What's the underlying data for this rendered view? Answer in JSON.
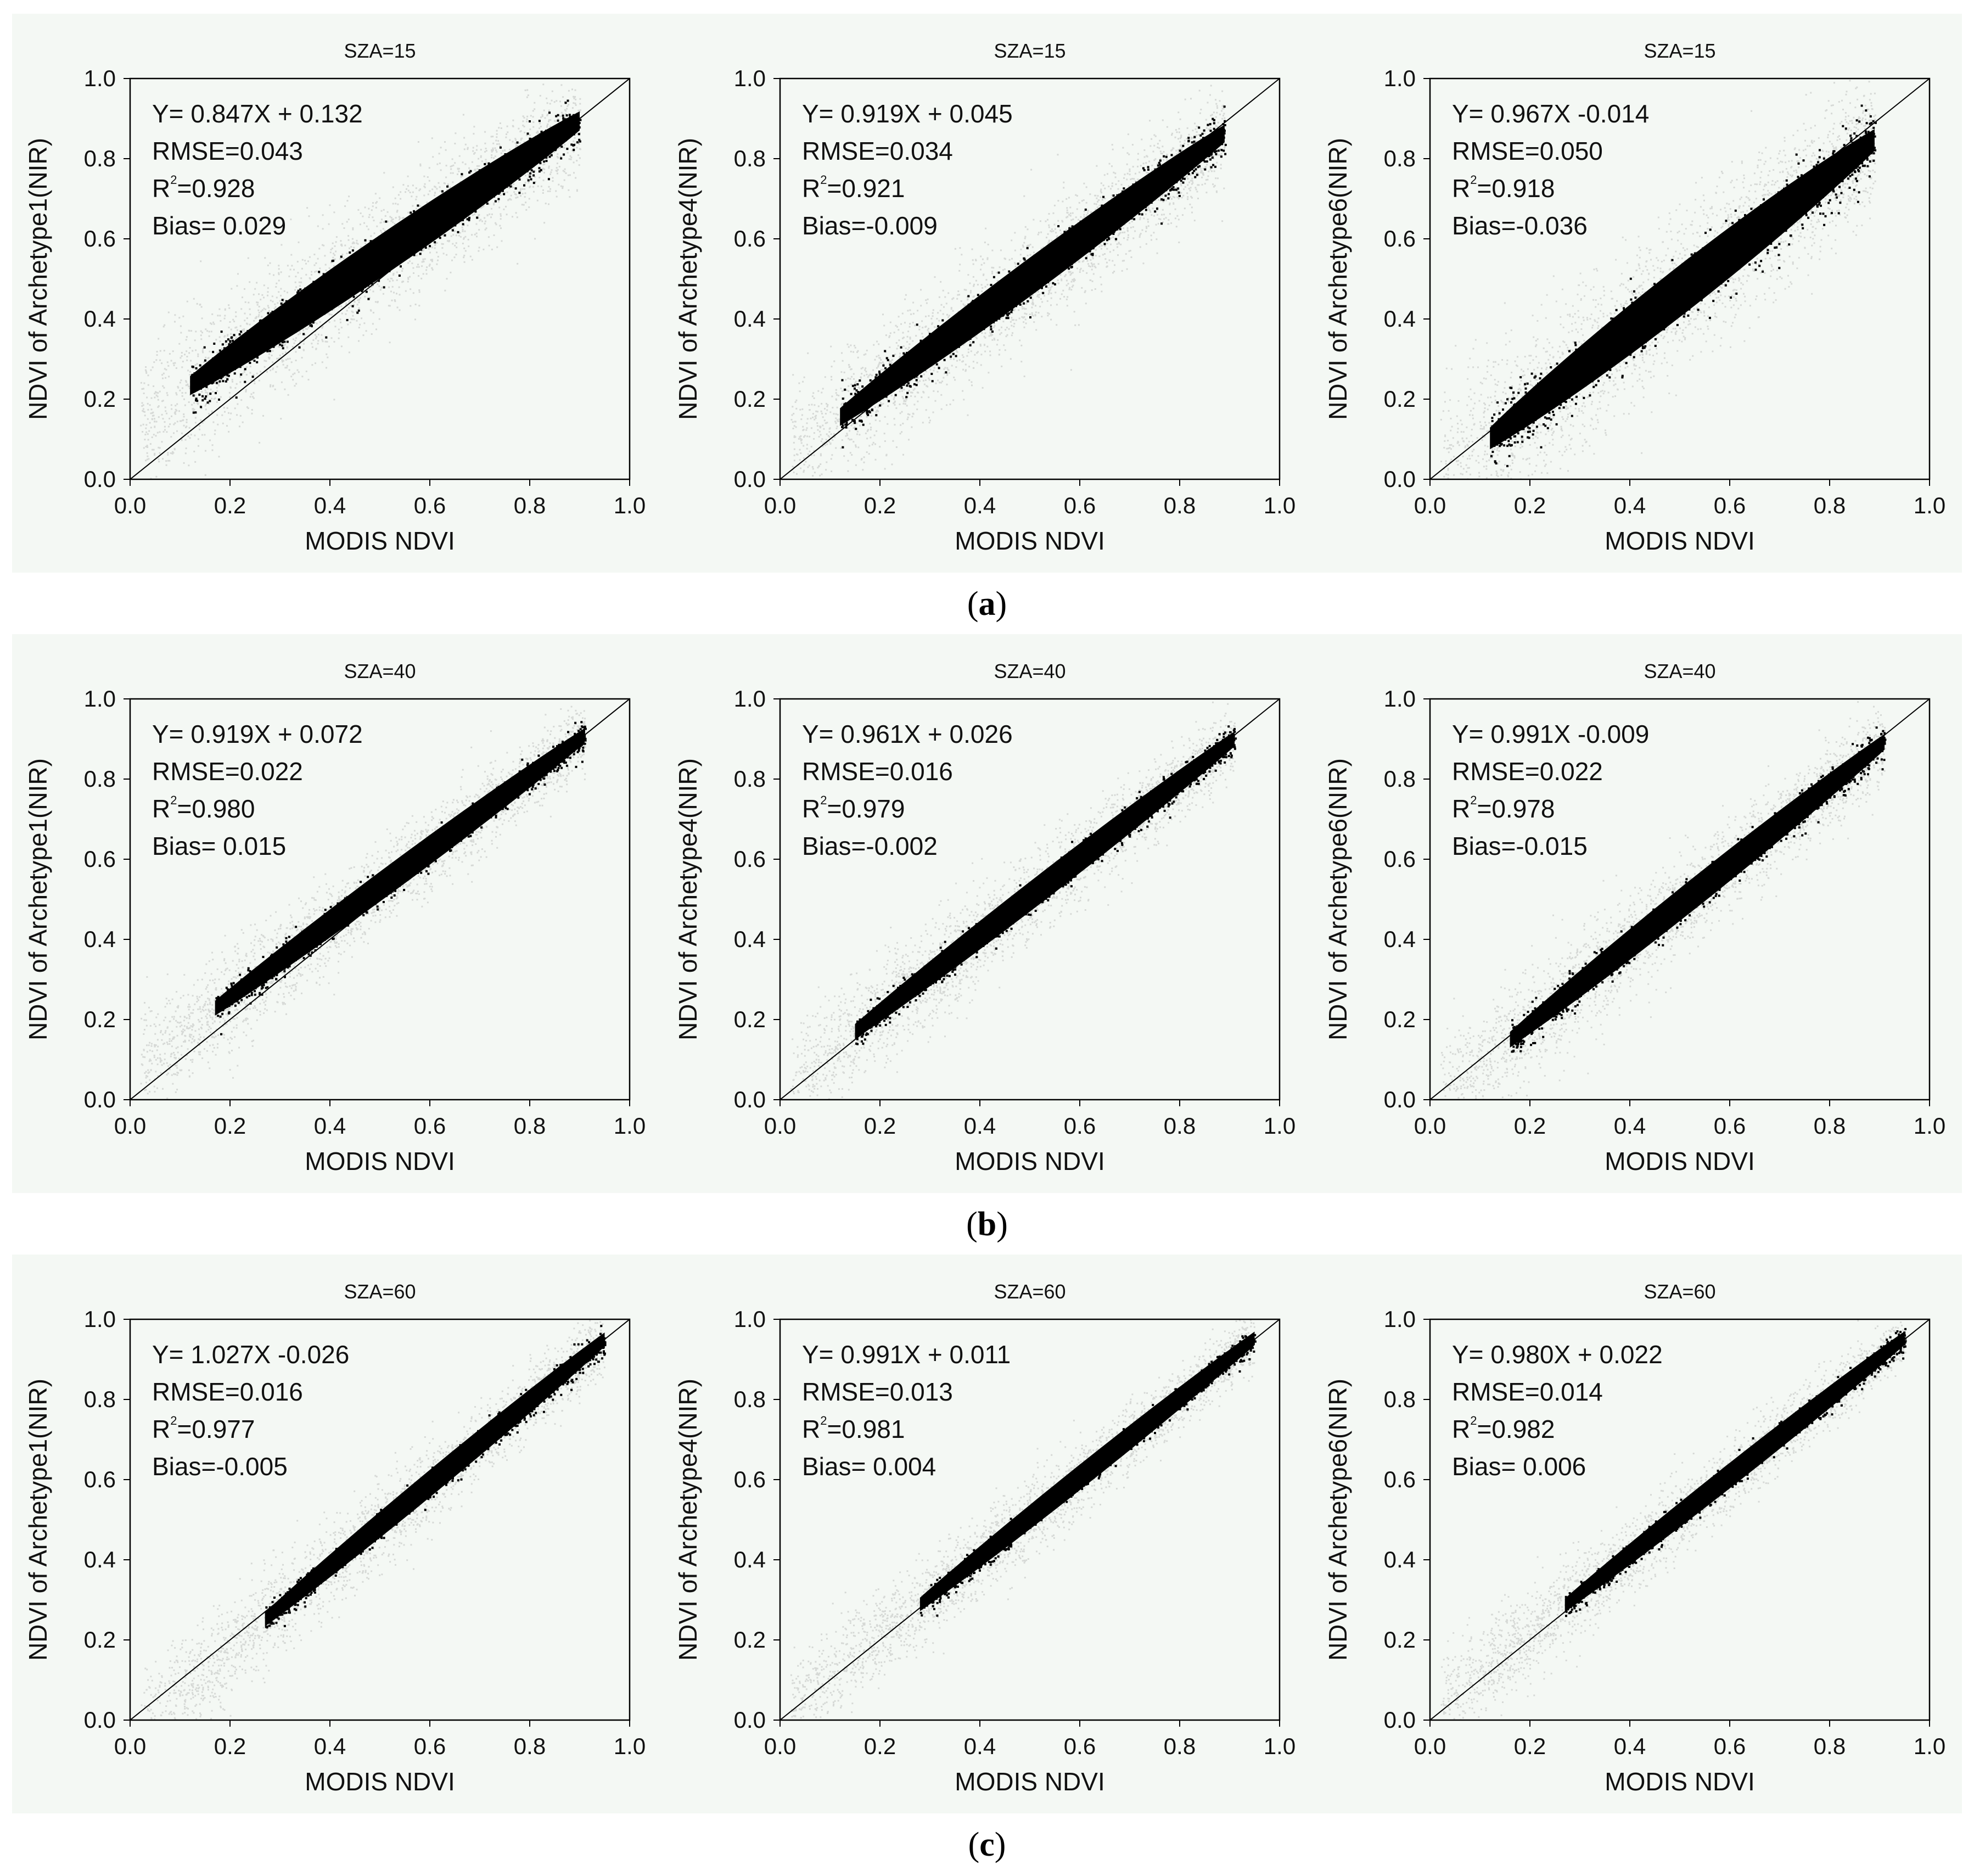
{
  "figure": {
    "captions": [
      "a",
      "b",
      "c"
    ],
    "colors": {
      "background": "#f4f8f4",
      "points_all": "#d6d9d6",
      "points_main": "#000000",
      "axis": "#000000"
    }
  },
  "chart_data": [
    {
      "type": "scatter",
      "row": "a",
      "title": "SZA=15",
      "xlabel": "MODIS NDVI",
      "ylabel": "NDVI of Archetype1(NIR)",
      "xlim": [
        0,
        1
      ],
      "ylim": [
        0,
        1
      ],
      "xticks": [
        "0.0",
        "0.2",
        "0.4",
        "0.6",
        "0.8",
        "1.0"
      ],
      "yticks": [
        "0.0",
        "0.2",
        "0.4",
        "0.6",
        "0.8",
        "1.0"
      ],
      "stats": {
        "equation": "Y= 0.847X + 0.132",
        "rmse": "RMSE=0.043",
        "r2": "=0.928",
        "bias": "Bias= 0.029"
      },
      "fit": {
        "slope": 0.847,
        "intercept": 0.132
      },
      "xrange": [
        0.12,
        0.9
      ],
      "spread": 0.04
    },
    {
      "type": "scatter",
      "row": "a",
      "title": "SZA=15",
      "xlabel": "MODIS NDVI",
      "ylabel": "NDVI of Archetype4(NIR)",
      "xlim": [
        0,
        1
      ],
      "ylim": [
        0,
        1
      ],
      "xticks": [
        "0.0",
        "0.2",
        "0.4",
        "0.6",
        "0.8",
        "1.0"
      ],
      "yticks": [
        "0.0",
        "0.2",
        "0.4",
        "0.6",
        "0.8",
        "1.0"
      ],
      "stats": {
        "equation": "Y= 0.919X + 0.045",
        "rmse": "RMSE=0.034",
        "r2": "=0.921",
        "bias": "Bias=-0.009"
      },
      "fit": {
        "slope": 0.919,
        "intercept": 0.045
      },
      "xrange": [
        0.12,
        0.89
      ],
      "spread": 0.035
    },
    {
      "type": "scatter",
      "row": "a",
      "title": "SZA=15",
      "xlabel": "MODIS NDVI",
      "ylabel": "NDVI of Archetype6(NIR)",
      "xlim": [
        0,
        1
      ],
      "ylim": [
        0,
        1
      ],
      "xticks": [
        "0.0",
        "0.2",
        "0.4",
        "0.6",
        "0.8",
        "1.0"
      ],
      "yticks": [
        "0.0",
        "0.2",
        "0.4",
        "0.6",
        "0.8",
        "1.0"
      ],
      "stats": {
        "equation": "Y= 0.967X -0.014",
        "rmse": "RMSE=0.050",
        "r2": "=0.918",
        "bias": "Bias=-0.036"
      },
      "fit": {
        "slope": 0.967,
        "intercept": -0.014
      },
      "xrange": [
        0.12,
        0.89
      ],
      "spread": 0.05
    },
    {
      "type": "scatter",
      "row": "b",
      "title": "SZA=40",
      "xlabel": "MODIS NDVI",
      "ylabel": "NDVI of Archetype1(NIR)",
      "xlim": [
        0,
        1
      ],
      "ylim": [
        0,
        1
      ],
      "xticks": [
        "0.0",
        "0.2",
        "0.4",
        "0.6",
        "0.8",
        "1.0"
      ],
      "yticks": [
        "0.0",
        "0.2",
        "0.4",
        "0.6",
        "0.8",
        "1.0"
      ],
      "stats": {
        "equation": "Y= 0.919X + 0.072",
        "rmse": "RMSE=0.022",
        "r2": "=0.980",
        "bias": "Bias= 0.015"
      },
      "fit": {
        "slope": 0.919,
        "intercept": 0.072
      },
      "xrange": [
        0.17,
        0.91
      ],
      "spread": 0.025
    },
    {
      "type": "scatter",
      "row": "b",
      "title": "SZA=40",
      "xlabel": "MODIS NDVI",
      "ylabel": "NDVI of Archetype4(NIR)",
      "xlim": [
        0,
        1
      ],
      "ylim": [
        0,
        1
      ],
      "xticks": [
        "0.0",
        "0.2",
        "0.4",
        "0.6",
        "0.8",
        "1.0"
      ],
      "yticks": [
        "0.0",
        "0.2",
        "0.4",
        "0.6",
        "0.8",
        "1.0"
      ],
      "stats": {
        "equation": "Y= 0.961X + 0.026",
        "rmse": "RMSE=0.016",
        "r2": "=0.979",
        "bias": "Bias=-0.002"
      },
      "fit": {
        "slope": 0.961,
        "intercept": 0.026
      },
      "xrange": [
        0.15,
        0.91
      ],
      "spread": 0.025
    },
    {
      "type": "scatter",
      "row": "b",
      "title": "SZA=40",
      "xlabel": "MODIS NDVI",
      "ylabel": "NDVI of Archetype6(NIR)",
      "xlim": [
        0,
        1
      ],
      "ylim": [
        0,
        1
      ],
      "xticks": [
        "0.0",
        "0.2",
        "0.4",
        "0.6",
        "0.8",
        "1.0"
      ],
      "yticks": [
        "0.0",
        "0.2",
        "0.4",
        "0.6",
        "0.8",
        "1.0"
      ],
      "stats": {
        "equation": "Y= 0.991X -0.009",
        "rmse": "RMSE=0.022",
        "r2": "=0.978",
        "bias": "Bias=-0.015"
      },
      "fit": {
        "slope": 0.991,
        "intercept": -0.009
      },
      "xrange": [
        0.16,
        0.91
      ],
      "spread": 0.028
    },
    {
      "type": "scatter",
      "row": "c",
      "title": "SZA=60",
      "xlabel": "MODIS NDVI",
      "ylabel": "NDVI of Archetype1(NIR)",
      "xlim": [
        0,
        1
      ],
      "ylim": [
        0,
        1
      ],
      "xticks": [
        "0.0",
        "0.2",
        "0.4",
        "0.6",
        "0.8",
        "1.0"
      ],
      "yticks": [
        "0.0",
        "0.2",
        "0.4",
        "0.6",
        "0.8",
        "1.0"
      ],
      "stats": {
        "equation": "Y= 1.027X -0.026",
        "rmse": "RMSE=0.016",
        "r2": "=0.977",
        "bias": "Bias=-0.005"
      },
      "fit": {
        "slope": 1.027,
        "intercept": -0.026
      },
      "xrange": [
        0.27,
        0.95
      ],
      "spread": 0.022
    },
    {
      "type": "scatter",
      "row": "c",
      "title": "SZA=60",
      "xlabel": "MODIS NDVI",
      "ylabel": "NDVI of Archetype4(NIR)",
      "xlim": [
        0,
        1
      ],
      "ylim": [
        0,
        1
      ],
      "xticks": [
        "0.0",
        "0.2",
        "0.4",
        "0.6",
        "0.8",
        "1.0"
      ],
      "yticks": [
        "0.0",
        "0.2",
        "0.4",
        "0.6",
        "0.8",
        "1.0"
      ],
      "stats": {
        "equation": "Y= 0.991X + 0.011",
        "rmse": "RMSE=0.013",
        "r2": "=0.981",
        "bias": "Bias= 0.004"
      },
      "fit": {
        "slope": 0.991,
        "intercept": 0.011
      },
      "xrange": [
        0.28,
        0.95
      ],
      "spread": 0.02
    },
    {
      "type": "scatter",
      "row": "c",
      "title": "SZA=60",
      "xlabel": "MODIS NDVI",
      "ylabel": "NDVI of Archetype6(NIR)",
      "xlim": [
        0,
        1
      ],
      "ylim": [
        0,
        1
      ],
      "xticks": [
        "0.0",
        "0.2",
        "0.4",
        "0.6",
        "0.8",
        "1.0"
      ],
      "yticks": [
        "0.0",
        "0.2",
        "0.4",
        "0.6",
        "0.8",
        "1.0"
      ],
      "stats": {
        "equation": "Y= 0.980X + 0.022",
        "rmse": "RMSE=0.014",
        "r2": "=0.982",
        "bias": "Bias= 0.006"
      },
      "fit": {
        "slope": 0.98,
        "intercept": 0.022
      },
      "xrange": [
        0.27,
        0.95
      ],
      "spread": 0.02
    }
  ]
}
